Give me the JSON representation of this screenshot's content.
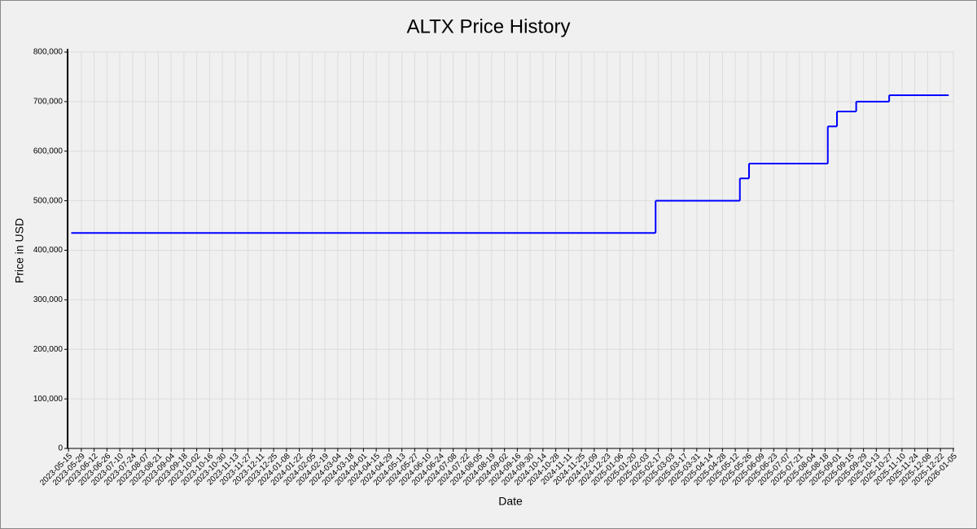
{
  "chart_data": {
    "type": "line",
    "step": "post",
    "title": "ALTX Price History",
    "x_label": "Date",
    "y_label": "Price in USD",
    "x": [
      "2023-05-18",
      "2025-02-14",
      "2025-05-17",
      "2025-05-27",
      "2025-08-21",
      "2025-08-31",
      "2025-09-21",
      "2025-10-27",
      "2025-12-31"
    ],
    "values": [
      435000,
      500000,
      545000,
      575000,
      650000,
      680000,
      700000,
      713000,
      713000
    ],
    "color": "#0000ff",
    "xlim": [
      "2023-05-14",
      "2026-01-06"
    ],
    "xticks": [
      "2023-05-15",
      "2023-05-29",
      "2023-06-12",
      "2023-06-26",
      "2023-07-10",
      "2023-07-24",
      "2023-08-07",
      "2023-08-21",
      "2023-09-04",
      "2023-09-18",
      "2023-10-02",
      "2023-10-16",
      "2023-10-30",
      "2023-11-13",
      "2023-11-27",
      "2023-12-11",
      "2023-12-25",
      "2024-01-08",
      "2024-01-22",
      "2024-02-05",
      "2024-02-19",
      "2024-03-04",
      "2024-03-18",
      "2024-04-01",
      "2024-04-15",
      "2024-04-29",
      "2024-05-13",
      "2024-05-27",
      "2024-06-10",
      "2024-06-24",
      "2024-07-08",
      "2024-07-22",
      "2024-08-05",
      "2024-08-19",
      "2024-09-02",
      "2024-09-16",
      "2024-09-30",
      "2024-10-14",
      "2024-10-28",
      "2024-11-11",
      "2024-11-25",
      "2024-12-09",
      "2024-12-23",
      "2025-01-06",
      "2025-01-20",
      "2025-02-03",
      "2025-02-17",
      "2025-03-03",
      "2025-03-17",
      "2025-03-31",
      "2025-04-14",
      "2025-04-28",
      "2025-05-12",
      "2025-05-26",
      "2025-06-09",
      "2025-06-23",
      "2025-07-07",
      "2025-07-21",
      "2025-08-04",
      "2025-08-18",
      "2025-09-01",
      "2025-09-15",
      "2025-09-29",
      "2025-10-13",
      "2025-10-27",
      "2025-11-10",
      "2025-11-24",
      "2025-12-08",
      "2025-12-22",
      "2026-01-05"
    ],
    "ylim": [
      0,
      800000
    ],
    "yticks": [
      0,
      {
        "value": 100000,
        "label": "100,000"
      },
      {
        "value": 200000,
        "label": "200,000"
      },
      {
        "value": 300000,
        "label": "300,000"
      },
      {
        "value": 400000,
        "label": "400,000"
      },
      {
        "value": 500000,
        "label": "500,000"
      },
      {
        "value": 600000,
        "label": "600,000"
      },
      {
        "value": 700000,
        "label": "700,000"
      },
      {
        "value": 800000,
        "label": "800,000"
      }
    ],
    "grid": true
  }
}
